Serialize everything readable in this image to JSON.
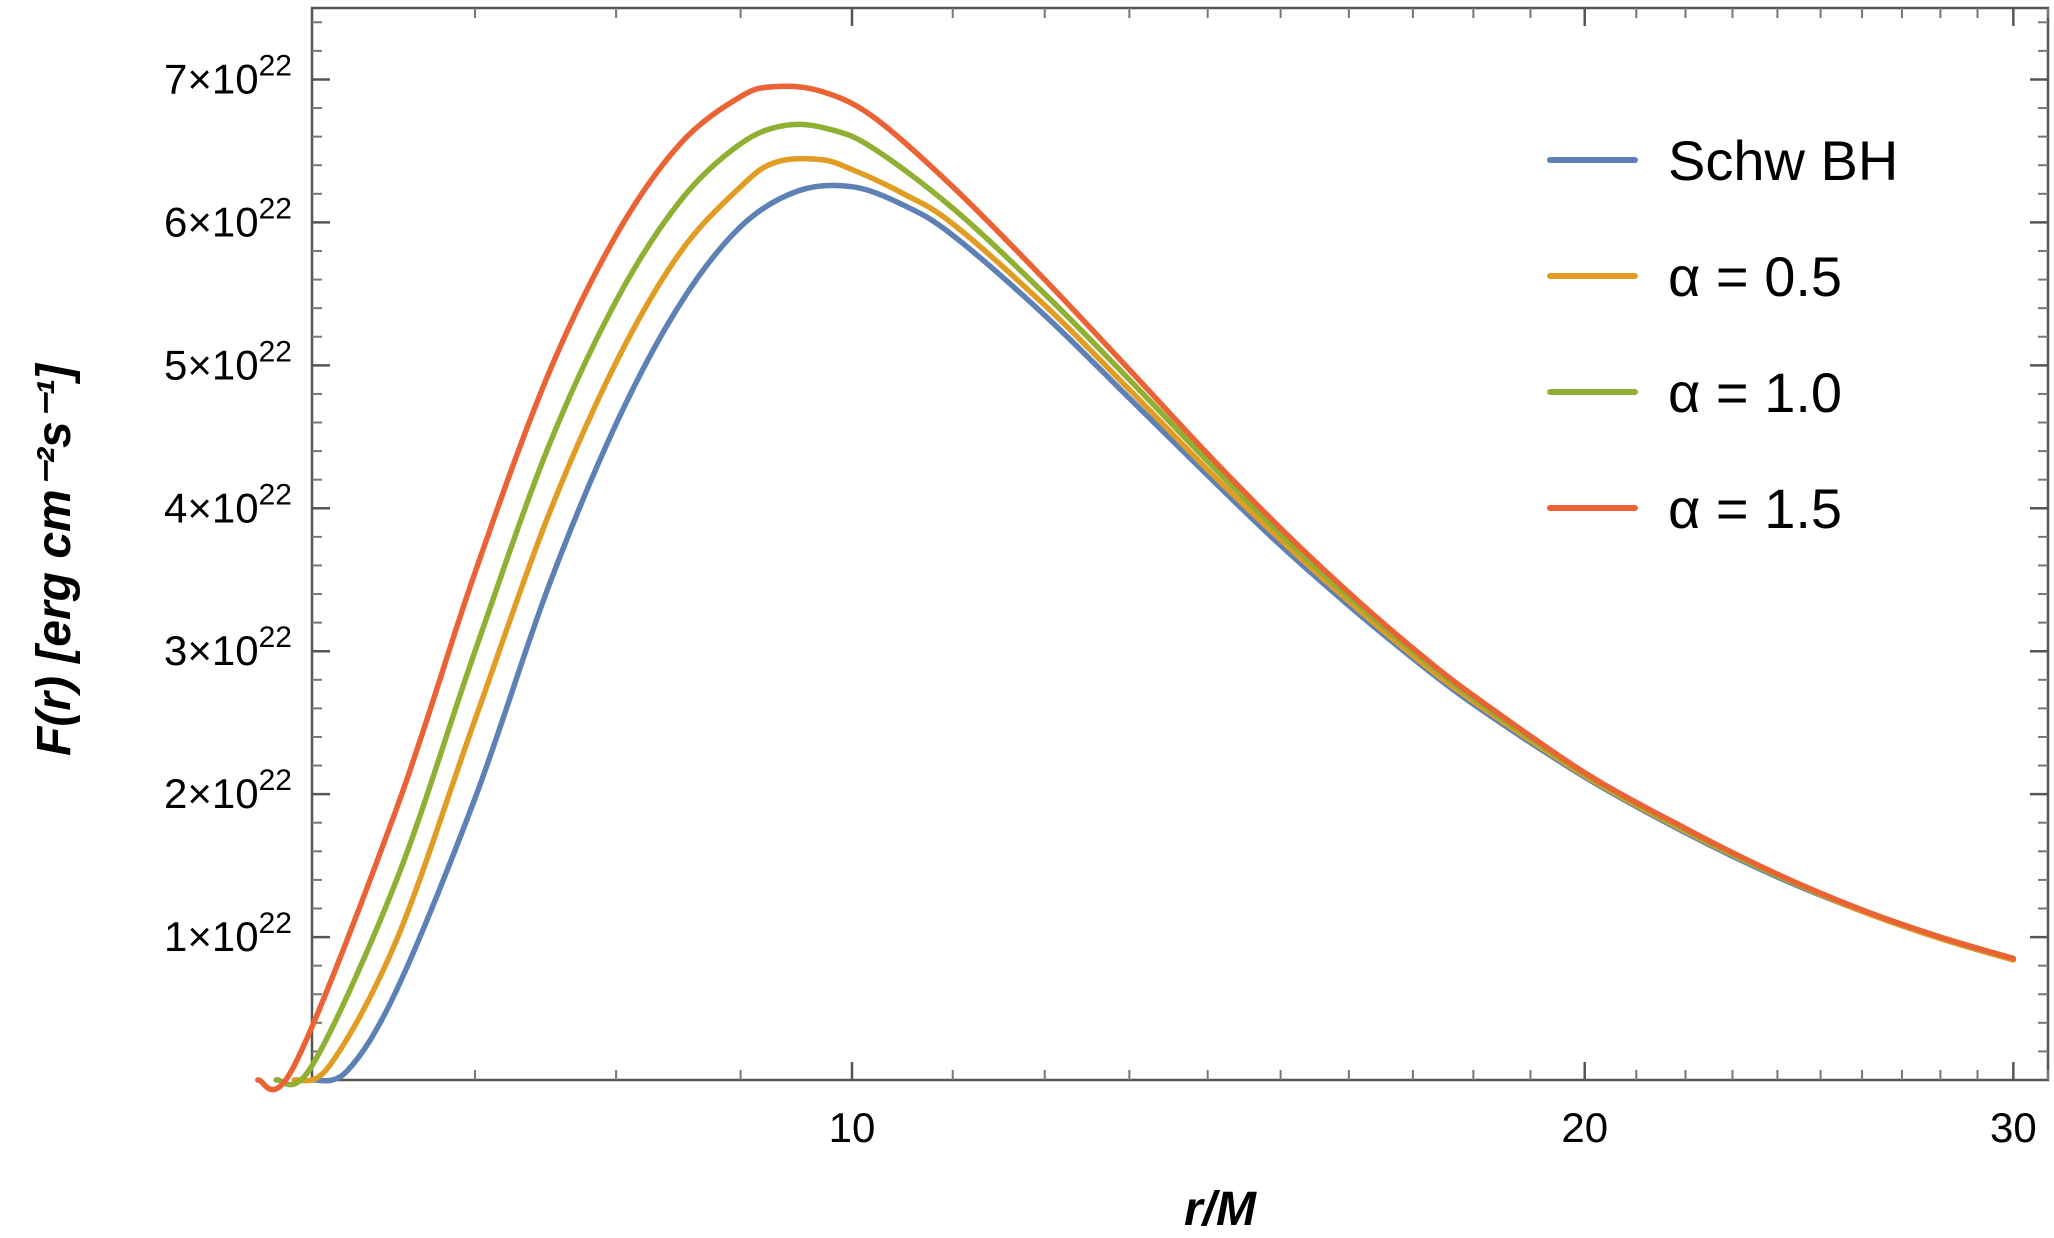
{
  "chart_data": {
    "type": "line",
    "xlabel": "r/M",
    "ylabel": "F(r)  [erg cm⁻²s⁻¹]",
    "x_scale": "log",
    "xlim": [
      6,
      31
    ],
    "ylim": [
      0,
      7.5e+22
    ],
    "x_ticks": [
      {
        "value": 10,
        "label": "10"
      },
      {
        "value": 20,
        "label": "20"
      },
      {
        "value": 30,
        "label": "30"
      }
    ],
    "y_ticks": [
      {
        "value": 1e+22,
        "coef": "1",
        "exp": "22"
      },
      {
        "value": 2e+22,
        "coef": "2",
        "exp": "22"
      },
      {
        "value": 3e+22,
        "coef": "3",
        "exp": "22"
      },
      {
        "value": 4e+22,
        "coef": "4",
        "exp": "22"
      },
      {
        "value": 5e+22,
        "coef": "5",
        "exp": "22"
      },
      {
        "value": 6e+22,
        "coef": "6",
        "exp": "22"
      },
      {
        "value": 7e+22,
        "coef": "7",
        "exp": "22"
      }
    ],
    "legend_position": "top-right",
    "series": [
      {
        "name": "Schw BH",
        "color": "#5e81b5",
        "points": [
          [
            6.0,
            0
          ],
          [
            6.2,
            6e+20
          ],
          [
            6.5,
            6.3e+21
          ],
          [
            7.0,
            1.97e+22
          ],
          [
            7.5,
            3.44e+22
          ],
          [
            8.0,
            4.59e+22
          ],
          [
            8.5,
            5.43e+22
          ],
          [
            9.0,
            5.97e+22
          ],
          [
            9.5,
            6.22e+22
          ],
          [
            10.0,
            6.25e+22
          ],
          [
            10.5,
            6.12e+22
          ],
          [
            11.0,
            5.91e+22
          ],
          [
            12.0,
            5.35e+22
          ],
          [
            13.0,
            4.77e+22
          ],
          [
            14.0,
            4.23e+22
          ],
          [
            15.0,
            3.74e+22
          ],
          [
            16.0,
            3.32e+22
          ],
          [
            17.0,
            2.95e+22
          ],
          [
            18.0,
            2.63e+22
          ],
          [
            20.0,
            2.12e+22
          ],
          [
            22.0,
            1.73e+22
          ],
          [
            24.0,
            1.42e+22
          ],
          [
            26.0,
            1.18e+22
          ],
          [
            28.0,
            9.9e+21
          ],
          [
            30.0,
            8.4e+21
          ]
        ]
      },
      {
        "name": "α = 0.5",
        "color": "#e19c24",
        "points": [
          [
            5.9,
            0
          ],
          [
            6.1,
            1e+21
          ],
          [
            6.5,
            9.8e+21
          ],
          [
            7.0,
            2.52e+22
          ],
          [
            7.5,
            3.94e+22
          ],
          [
            8.0,
            5.02e+22
          ],
          [
            8.5,
            5.79e+22
          ],
          [
            9.0,
            6.25e+22
          ],
          [
            9.3,
            6.42e+22
          ],
          [
            9.7,
            6.44e+22
          ],
          [
            10.0,
            6.37e+22
          ],
          [
            10.5,
            6.2e+22
          ],
          [
            11.0,
            5.99e+22
          ],
          [
            12.0,
            5.42e+22
          ],
          [
            13.0,
            4.83e+22
          ],
          [
            14.0,
            4.27e+22
          ],
          [
            15.0,
            3.78e+22
          ],
          [
            16.0,
            3.35e+22
          ],
          [
            17.0,
            2.97e+22
          ],
          [
            18.0,
            2.65e+22
          ],
          [
            20.0,
            2.13e+22
          ],
          [
            22.0,
            1.74e+22
          ],
          [
            24.0,
            1.43e+22
          ],
          [
            26.0,
            1.18e+22
          ],
          [
            28.0,
            9.9e+21
          ],
          [
            30.0,
            8.4e+21
          ]
        ]
      },
      {
        "name": "α = 1.0",
        "color": "#8fb032",
        "points": [
          [
            5.8,
            0
          ],
          [
            6.0,
            1e+21
          ],
          [
            6.5,
            1.4e+22
          ],
          [
            7.0,
            3e+22
          ],
          [
            7.5,
            4.42e+22
          ],
          [
            8.0,
            5.45e+22
          ],
          [
            8.5,
            6.15e+22
          ],
          [
            9.0,
            6.55e+22
          ],
          [
            9.4,
            6.68e+22
          ],
          [
            9.8,
            6.65e+22
          ],
          [
            10.2,
            6.52e+22
          ],
          [
            11.0,
            6.1e+22
          ],
          [
            12.0,
            5.5e+22
          ],
          [
            13.0,
            4.9e+22
          ],
          [
            14.0,
            4.33e+22
          ],
          [
            15.0,
            3.82e+22
          ],
          [
            16.0,
            3.38e+22
          ],
          [
            17.0,
            3e+22
          ],
          [
            18.0,
            2.67e+22
          ],
          [
            20.0,
            2.14e+22
          ],
          [
            22.0,
            1.75e+22
          ],
          [
            24.0,
            1.43e+22
          ],
          [
            26.0,
            1.19e+22
          ],
          [
            28.0,
            1e+22
          ],
          [
            30.0,
            8.5e+21
          ]
        ]
      },
      {
        "name": "α = 1.5",
        "color": "#eb6235",
        "points": [
          [
            5.7,
            0
          ],
          [
            5.9,
            1e+21
          ],
          [
            6.5,
            1.9e+22
          ],
          [
            7.0,
            3.55e+22
          ],
          [
            7.5,
            4.93e+22
          ],
          [
            8.0,
            5.91e+22
          ],
          [
            8.5,
            6.55e+22
          ],
          [
            9.0,
            6.88e+22
          ],
          [
            9.3,
            6.95e+22
          ],
          [
            9.7,
            6.92e+22
          ],
          [
            10.2,
            6.74e+22
          ],
          [
            11.0,
            6.25e+22
          ],
          [
            12.0,
            5.6e+22
          ],
          [
            13.0,
            4.97e+22
          ],
          [
            14.0,
            4.38e+22
          ],
          [
            15.0,
            3.86e+22
          ],
          [
            16.0,
            3.41e+22
          ],
          [
            17.0,
            3.02e+22
          ],
          [
            18.0,
            2.69e+22
          ],
          [
            20.0,
            2.15e+22
          ],
          [
            22.0,
            1.76e+22
          ],
          [
            24.0,
            1.44e+22
          ],
          [
            26.0,
            1.19e+22
          ],
          [
            28.0,
            1e+22
          ],
          [
            30.0,
            8.5e+21
          ]
        ]
      }
    ]
  }
}
